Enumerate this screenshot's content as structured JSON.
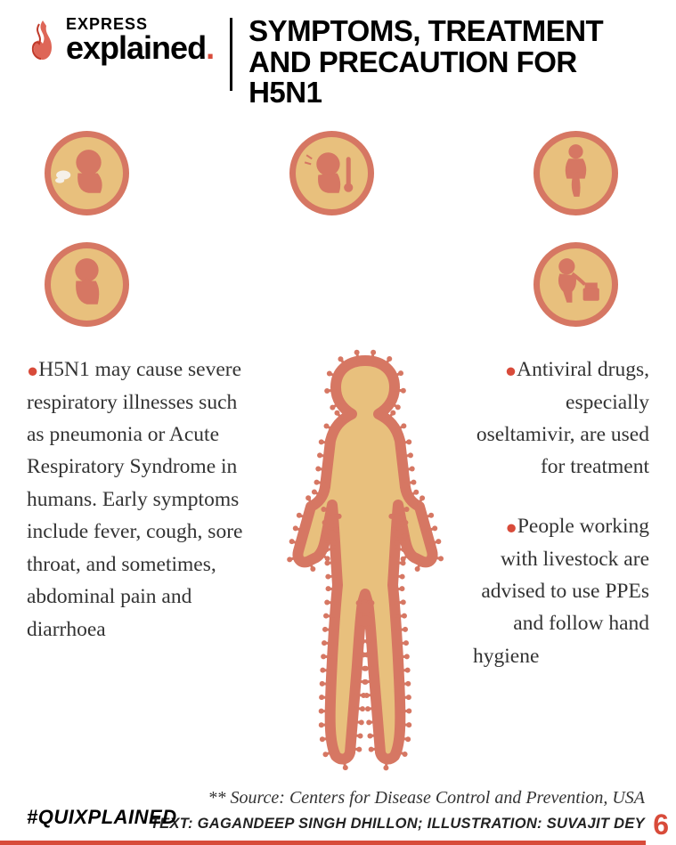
{
  "brand": {
    "top": "EXPRESS",
    "bottom": "explained"
  },
  "title": "SYMPTOMS, TREATMENT AND PRECAUTION FOR H5N1",
  "body": {
    "left": "H5N1 may cause severe respiratory illnesses such as pneumonia or Acute Respiratory Syndrome in humans. Early symptoms include fever, cough, sore throat, and sometimes, abdominal pain and diarrhoea",
    "right1": "Antiviral drugs, especially oseltamivir, are used for treatment",
    "right2a": "People working with livestock are advised to use PPEs and follow hand",
    "right2b": "hygiene"
  },
  "source": "** Source: Centers for Disease Control and Prevention, USA",
  "credits": "TEXT: GAGANDEEP SINGH DHILLON; ILLUSTRATION: SUVAJIT DEY",
  "hashtag": "#QUIXPLAINED",
  "page": "6",
  "colors": {
    "accent": "#d84b3a",
    "icon_fill": "#e8c07d",
    "icon_border": "#d67763",
    "figure_outline": "#d67763",
    "figure_fill": "#e8c07d"
  },
  "icons": [
    "cough-icon",
    "fever-icon",
    "abdominal-pain-icon",
    "sneeze-icon",
    "vomit-icon"
  ]
}
